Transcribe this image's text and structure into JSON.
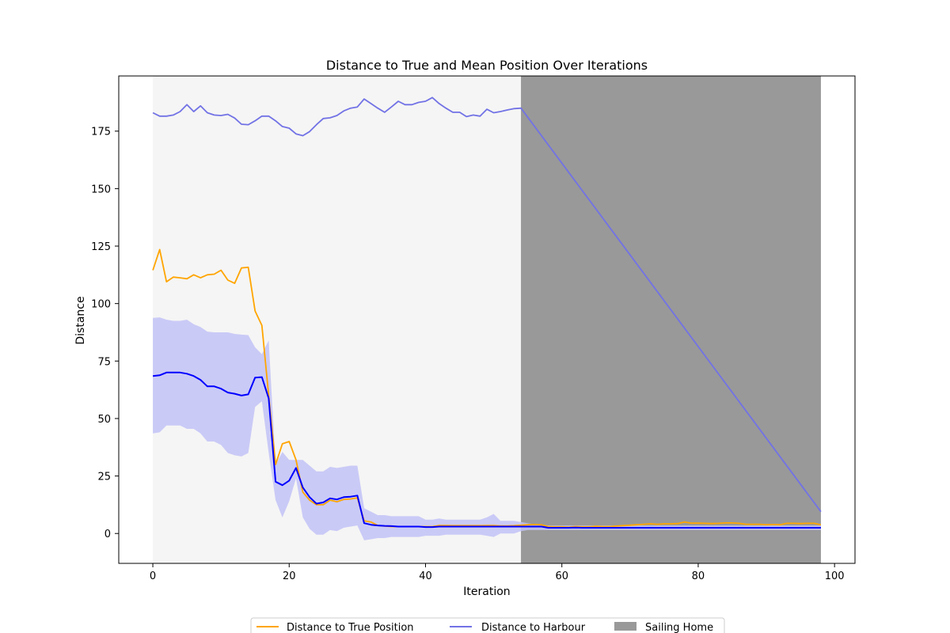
{
  "chart_data": {
    "type": "line",
    "title": "Distance to True and Mean Position Over Iterations",
    "xlabel": "Iteration",
    "ylabel": "Distance",
    "xlim": [
      -5,
      103
    ],
    "ylim": [
      -13,
      199
    ],
    "xticks": [
      0,
      20,
      40,
      60,
      80,
      100
    ],
    "yticks": [
      0,
      25,
      50,
      75,
      100,
      125,
      150,
      175
    ],
    "grid": false,
    "legend_position": "bottom-center",
    "spans": [
      {
        "name": "",
        "x_start": 0,
        "x_end": 54,
        "color": "#f5f5f5"
      },
      {
        "name": "Sailing Home",
        "x_start": 54,
        "x_end": 98,
        "color": "#999999"
      }
    ],
    "series": [
      {
        "name": "Distance to True Position",
        "color": "#ffa500",
        "x": [
          0,
          1,
          2,
          3,
          4,
          5,
          6,
          7,
          8,
          9,
          10,
          11,
          12,
          13,
          14,
          15,
          16,
          17,
          18,
          19,
          20,
          21,
          22,
          23,
          24,
          25,
          26,
          27,
          28,
          29,
          30,
          31,
          32,
          33,
          34,
          35,
          36,
          37,
          38,
          39,
          40,
          41,
          42,
          43,
          44,
          45,
          46,
          47,
          48,
          49,
          50,
          51,
          52,
          53,
          54,
          55,
          56,
          57,
          58,
          59,
          60,
          61,
          62,
          63,
          64,
          65,
          66,
          67,
          68,
          69,
          70,
          71,
          72,
          73,
          74,
          75,
          76,
          77,
          78,
          79,
          80,
          81,
          82,
          83,
          84,
          85,
          86,
          87,
          88,
          89,
          90,
          91,
          92,
          93,
          94,
          95,
          96,
          97,
          98
        ],
        "y": [
          114.5,
          123.5,
          109.5,
          111.5,
          111.2,
          110.8,
          112.5,
          111.2,
          112.5,
          112.8,
          114.5,
          110.2,
          108.8,
          115.5,
          115.8,
          96.8,
          90.5,
          60.0,
          30.0,
          39.0,
          40.0,
          32.0,
          18.0,
          14.5,
          12.5,
          12.5,
          14.5,
          13.8,
          14.8,
          15.0,
          15.5,
          5.5,
          5.0,
          3.5,
          3.2,
          3.0,
          3.0,
          3.0,
          3.0,
          3.0,
          3.0,
          3.0,
          3.5,
          3.5,
          3.4,
          3.4,
          3.4,
          3.4,
          3.4,
          3.5,
          3.5,
          3.3,
          3.3,
          3.4,
          3.6,
          3.8,
          3.9,
          3.8,
          3.0,
          2.9,
          2.9,
          2.8,
          3.0,
          2.9,
          2.9,
          3.1,
          3.0,
          3.0,
          3.2,
          3.4,
          3.6,
          3.8,
          4.0,
          4.2,
          4.0,
          4.2,
          4.2,
          4.3,
          5.0,
          4.5,
          4.5,
          4.4,
          4.3,
          4.4,
          4.6,
          4.6,
          4.4,
          4.0,
          4.0,
          4.0,
          3.8,
          3.9,
          3.8,
          4.4,
          4.4,
          4.3,
          4.4,
          4.4,
          3.8
        ]
      },
      {
        "name": "Distance to Harbour",
        "color": "#7272e6",
        "x": [
          0,
          1,
          2,
          3,
          4,
          5,
          6,
          7,
          8,
          9,
          10,
          11,
          12,
          13,
          14,
          15,
          16,
          17,
          18,
          19,
          20,
          21,
          22,
          23,
          24,
          25,
          26,
          27,
          28,
          29,
          30,
          31,
          32,
          33,
          34,
          35,
          36,
          37,
          38,
          39,
          40,
          41,
          42,
          43,
          44,
          45,
          46,
          47,
          48,
          49,
          50,
          51,
          52,
          53,
          54,
          98
        ],
        "y": [
          183.0,
          181.5,
          181.5,
          182.0,
          183.5,
          186.5,
          183.5,
          186.0,
          183.0,
          182.0,
          181.8,
          182.3,
          180.7,
          178.0,
          177.8,
          179.5,
          181.5,
          181.5,
          179.5,
          177.0,
          176.3,
          173.8,
          173.0,
          174.8,
          177.8,
          180.5,
          180.8,
          181.8,
          183.8,
          185.0,
          185.5,
          189.0,
          187.0,
          185.0,
          183.2,
          185.5,
          188.0,
          186.5,
          186.5,
          187.5,
          188.0,
          189.6,
          187.0,
          185.0,
          183.2,
          183.2,
          181.3,
          182.0,
          181.5,
          184.5,
          183.0,
          183.5,
          184.2,
          184.8,
          185.0,
          9.5
        ]
      },
      {
        "name": "",
        "color": "#0000ff",
        "x": [
          0,
          1,
          2,
          3,
          4,
          5,
          6,
          7,
          8,
          9,
          10,
          11,
          12,
          13,
          14,
          15,
          16,
          17,
          18,
          19,
          20,
          21,
          22,
          23,
          24,
          25,
          26,
          27,
          28,
          29,
          30,
          31,
          32,
          33,
          34,
          35,
          36,
          37,
          38,
          39,
          40,
          41,
          42,
          43,
          44,
          45,
          46,
          47,
          48,
          49,
          50,
          51,
          52,
          53,
          54,
          55,
          56,
          57,
          58,
          59,
          60,
          61,
          62,
          63,
          64,
          65,
          66,
          67,
          68,
          69,
          70,
          71,
          72,
          73,
          74,
          75,
          76,
          77,
          78,
          79,
          80,
          81,
          82,
          83,
          84,
          85,
          86,
          87,
          88,
          89,
          90,
          91,
          92,
          93,
          94,
          95,
          96,
          97,
          98
        ],
        "y": [
          68.5,
          68.8,
          70.0,
          70.0,
          70.0,
          69.5,
          68.5,
          66.8,
          64.0,
          64.0,
          63.0,
          61.3,
          60.8,
          60.0,
          60.5,
          67.8,
          68.0,
          58.8,
          22.5,
          21.0,
          23.0,
          28.5,
          20.0,
          15.8,
          13.0,
          13.5,
          15.3,
          14.8,
          15.8,
          16.0,
          16.5,
          4.5,
          3.8,
          3.5,
          3.3,
          3.2,
          3.0,
          3.0,
          3.0,
          3.0,
          2.8,
          2.8,
          3.0,
          3.0,
          3.0,
          3.0,
          3.0,
          3.0,
          3.0,
          3.0,
          3.0,
          3.0,
          3.0,
          3.0,
          3.0,
          3.0,
          3.0,
          3.0,
          2.5,
          2.5,
          2.5,
          2.5,
          2.6,
          2.5,
          2.5,
          2.5,
          2.5,
          2.5,
          2.5,
          2.5,
          2.5,
          2.5,
          2.5,
          2.5,
          2.5,
          2.5,
          2.5,
          2.5,
          2.5,
          2.5,
          2.5,
          2.5,
          2.5,
          2.5,
          2.5,
          2.5,
          2.5,
          2.5,
          2.5,
          2.5,
          2.5,
          2.5,
          2.5,
          2.5,
          2.5,
          2.5,
          2.5,
          2.5,
          2.5
        ]
      }
    ],
    "band": {
      "color": "#c2c2f7",
      "x": [
        0,
        1,
        2,
        3,
        4,
        5,
        6,
        7,
        8,
        9,
        10,
        11,
        12,
        13,
        14,
        15,
        16,
        17,
        18,
        19,
        20,
        21,
        22,
        23,
        24,
        25,
        26,
        27,
        28,
        29,
        30,
        31,
        32,
        33,
        34,
        35,
        36,
        37,
        38,
        39,
        40,
        41,
        42,
        43,
        44,
        45,
        46,
        47,
        48,
        49,
        50,
        51,
        52,
        53,
        54,
        55,
        56,
        57,
        58,
        59,
        60,
        61,
        62,
        63,
        64,
        65,
        66,
        67,
        68,
        69,
        70,
        71,
        72,
        73,
        74,
        75,
        76,
        77,
        78,
        79,
        80,
        81,
        82,
        83,
        84,
        85,
        86,
        87,
        88,
        89,
        90,
        91,
        92,
        93,
        94,
        95,
        96,
        97,
        98
      ],
      "upper": [
        93.8,
        94.0,
        93.0,
        92.5,
        92.5,
        93.0,
        91.0,
        89.8,
        87.8,
        87.5,
        87.5,
        87.5,
        86.8,
        86.5,
        86.3,
        81.0,
        78.0,
        84.0,
        30.0,
        35.5,
        32.0,
        32.0,
        32.0,
        29.5,
        27.0,
        27.0,
        29.0,
        28.5,
        29.0,
        29.5,
        29.5,
        11.0,
        9.5,
        8.0,
        8.0,
        7.5,
        7.5,
        7.5,
        7.5,
        7.5,
        6.0,
        6.0,
        6.5,
        6.0,
        6.0,
        6.0,
        6.0,
        6.0,
        6.0,
        7.0,
        8.5,
        5.5,
        5.5,
        5.5,
        5.0,
        4.5,
        4.0,
        4.0,
        3.5,
        3.5,
        3.5,
        3.5,
        3.5,
        3.5,
        3.5,
        3.5,
        3.5,
        3.5,
        3.5,
        3.5,
        3.5,
        3.5,
        3.5,
        3.5,
        3.5,
        3.5,
        3.5,
        3.5,
        3.5,
        3.5,
        3.5,
        3.5,
        3.5,
        3.5,
        3.5,
        3.5,
        3.5,
        3.5,
        3.5,
        3.5,
        3.5,
        3.5,
        3.5,
        3.5,
        3.5,
        3.5,
        3.5,
        3.5,
        3.5
      ],
      "lower": [
        43.5,
        44.0,
        47.0,
        47.0,
        47.0,
        45.5,
        45.5,
        43.5,
        40.0,
        40.0,
        38.5,
        35.0,
        34.0,
        33.5,
        35.0,
        55.0,
        57.5,
        35.0,
        14.5,
        7.0,
        14.0,
        24.0,
        7.0,
        2.0,
        -0.5,
        -0.5,
        1.5,
        1.0,
        2.5,
        3.0,
        3.5,
        -3.0,
        -2.5,
        -2.0,
        -2.0,
        -1.5,
        -1.5,
        -1.5,
        -1.5,
        -1.5,
        -1.0,
        -1.0,
        -1.0,
        -0.5,
        -0.5,
        -0.5,
        -0.5,
        -0.5,
        -0.5,
        -1.0,
        -1.5,
        0.0,
        0.0,
        0.0,
        1.0,
        1.5,
        1.5,
        1.5,
        1.5,
        1.5,
        1.5,
        1.5,
        1.5,
        1.5,
        1.5,
        1.5,
        1.5,
        1.5,
        1.5,
        1.5,
        1.5,
        1.5,
        1.5,
        1.5,
        1.5,
        1.5,
        1.5,
        1.5,
        1.5,
        1.5,
        1.5,
        1.5,
        1.5,
        1.5,
        1.5,
        1.5,
        1.5,
        1.5,
        1.5,
        1.5,
        1.5,
        1.5,
        1.5,
        1.5,
        1.5,
        1.5,
        1.5,
        1.5,
        1.5
      ]
    }
  }
}
